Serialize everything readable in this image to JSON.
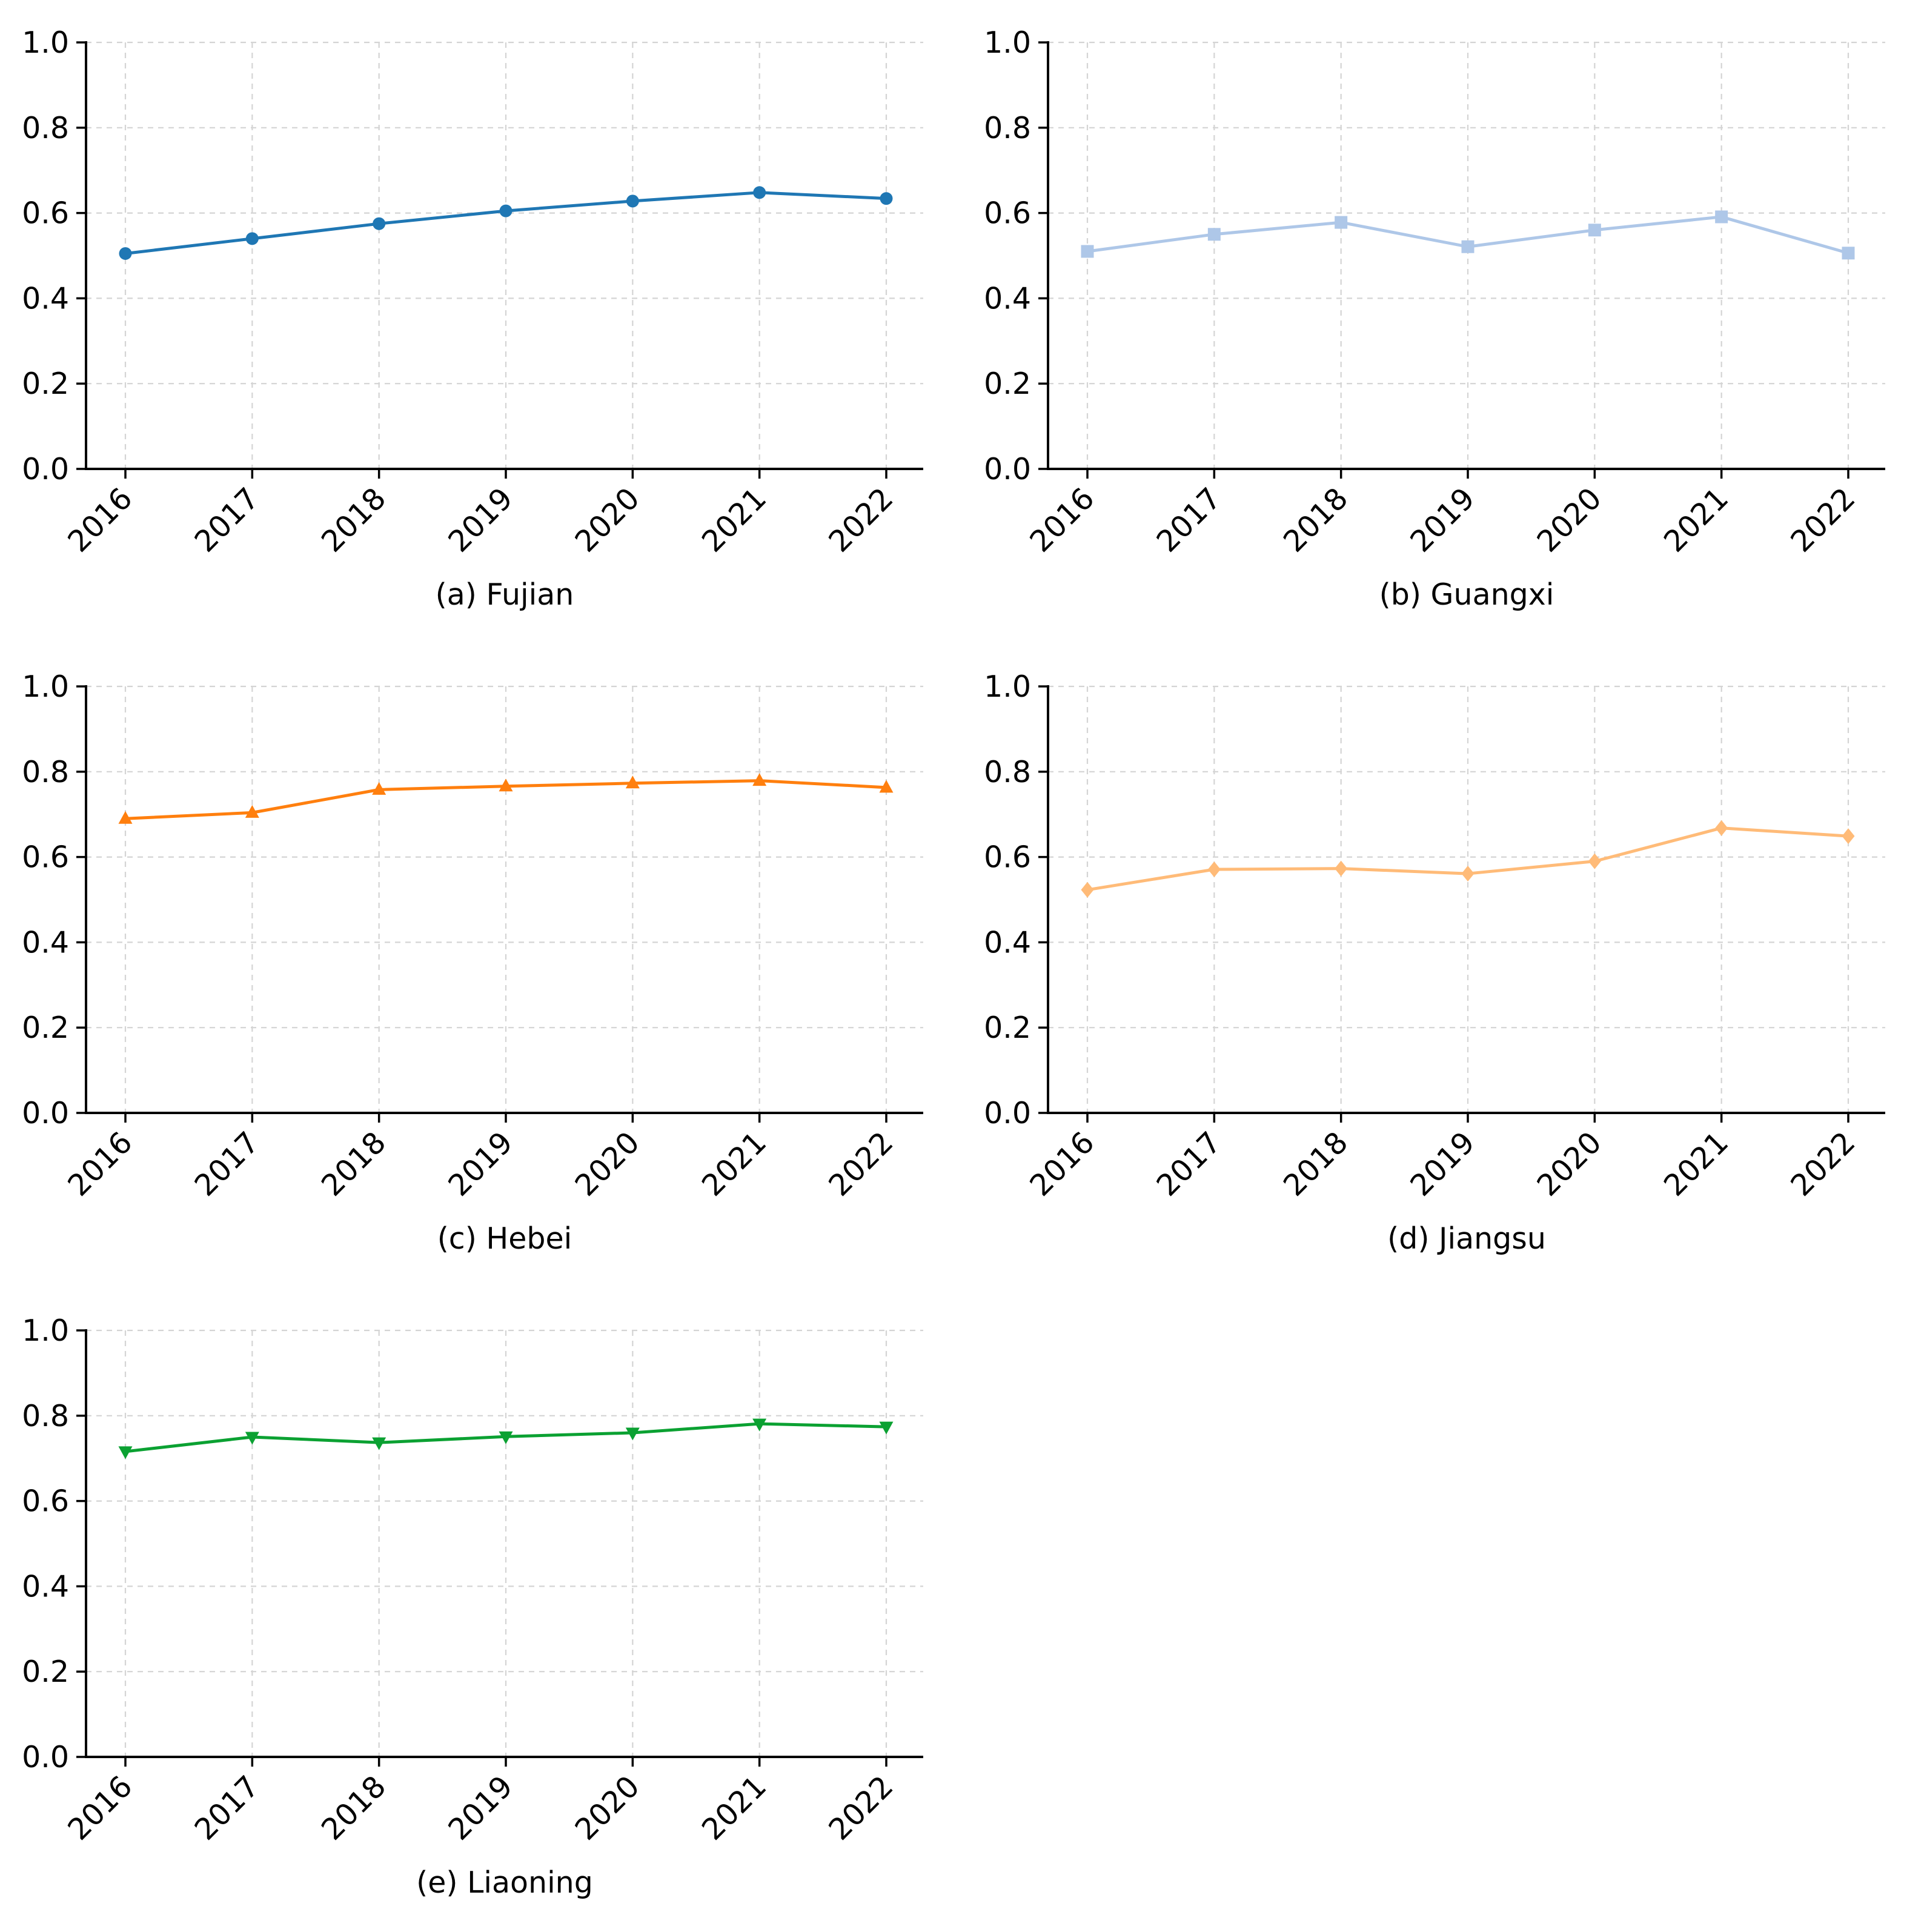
{
  "figure": {
    "background": "#ffffff",
    "grid_color": "#d4d4d4",
    "spine_color": "#000000",
    "text_color": "#000000"
  },
  "chart_data": [
    {
      "type": "line",
      "title": "(a) Fujian",
      "region": "Fujian",
      "x": [
        "2016",
        "2017",
        "2018",
        "2019",
        "2020",
        "2021",
        "2022"
      ],
      "series": [
        {
          "name": "Fujian",
          "marker": "circle",
          "color": "#1f77b4",
          "values": [
            0.505,
            0.54,
            0.575,
            0.605,
            0.628,
            0.648,
            0.634
          ]
        }
      ],
      "ylim": [
        0.0,
        1.0
      ],
      "yticks": [
        "0.0",
        "0.2",
        "0.4",
        "0.6",
        "0.8",
        "1.0"
      ],
      "grid": true,
      "legend": "none"
    },
    {
      "type": "line",
      "title": "(b) Guangxi",
      "region": "Guangxi",
      "x": [
        "2016",
        "2017",
        "2018",
        "2019",
        "2020",
        "2021",
        "2022"
      ],
      "series": [
        {
          "name": "Guangxi",
          "marker": "square",
          "color": "#aec7e8",
          "values": [
            0.51,
            0.55,
            0.578,
            0.521,
            0.56,
            0.591,
            0.506
          ]
        }
      ],
      "ylim": [
        0.0,
        1.0
      ],
      "yticks": [
        "0.0",
        "0.2",
        "0.4",
        "0.6",
        "0.8",
        "1.0"
      ],
      "grid": true,
      "legend": "none"
    },
    {
      "type": "line",
      "title": "(c) Hebei",
      "region": "Hebei",
      "x": [
        "2016",
        "2017",
        "2018",
        "2019",
        "2020",
        "2021",
        "2022"
      ],
      "series": [
        {
          "name": "Hebei",
          "marker": "triangle-up",
          "color": "#ff7f0e",
          "values": [
            0.69,
            0.704,
            0.758,
            0.766,
            0.773,
            0.779,
            0.763
          ]
        }
      ],
      "ylim": [
        0.0,
        1.0
      ],
      "yticks": [
        "0.0",
        "0.2",
        "0.4",
        "0.6",
        "0.8",
        "1.0"
      ],
      "grid": true,
      "legend": "none"
    },
    {
      "type": "line",
      "title": "(d) Jiangsu",
      "region": "Jiangsu",
      "x": [
        "2016",
        "2017",
        "2018",
        "2019",
        "2020",
        "2021",
        "2022"
      ],
      "series": [
        {
          "name": "Jiangsu",
          "marker": "diamond",
          "color": "#ffbb78",
          "values": [
            0.523,
            0.571,
            0.573,
            0.561,
            0.59,
            0.668,
            0.649
          ]
        }
      ],
      "ylim": [
        0.0,
        1.0
      ],
      "yticks": [
        "0.0",
        "0.2",
        "0.4",
        "0.6",
        "0.8",
        "1.0"
      ],
      "grid": true,
      "legend": "none"
    },
    {
      "type": "line",
      "title": "(e) Liaoning",
      "region": "Liaoning",
      "x": [
        "2016",
        "2017",
        "2018",
        "2019",
        "2020",
        "2021",
        "2022"
      ],
      "series": [
        {
          "name": "Liaoning",
          "marker": "triangle-down",
          "color": "#0ba132",
          "values": [
            0.716,
            0.75,
            0.737,
            0.751,
            0.76,
            0.781,
            0.774
          ]
        }
      ],
      "ylim": [
        0.0,
        1.0
      ],
      "yticks": [
        "0.0",
        "0.2",
        "0.4",
        "0.6",
        "0.8",
        "1.0"
      ],
      "grid": true,
      "legend": "none"
    }
  ]
}
